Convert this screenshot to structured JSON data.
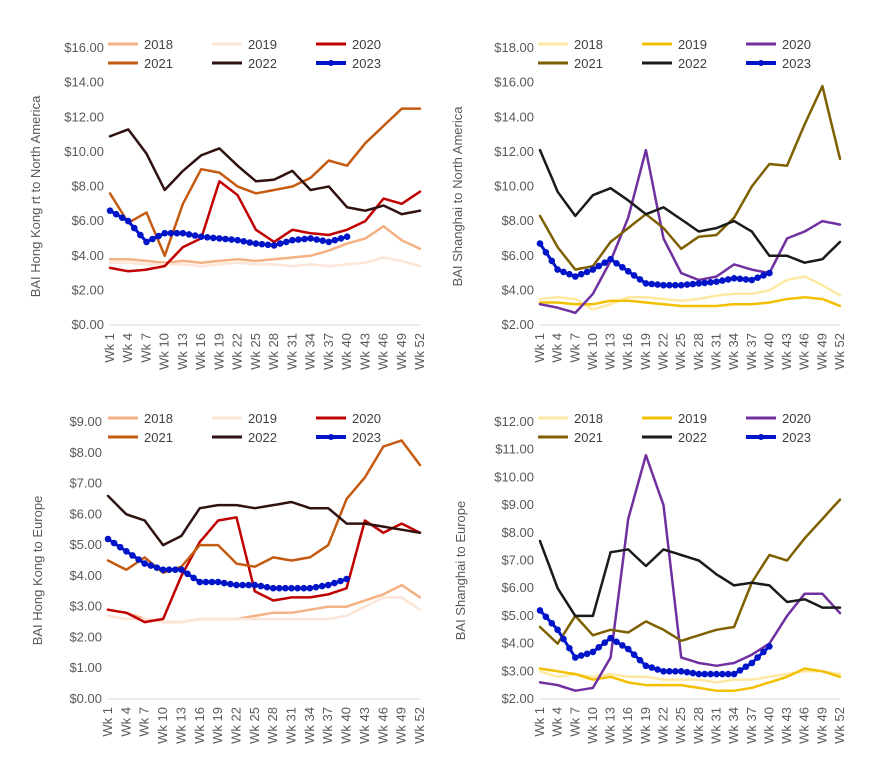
{
  "chart_data": [
    {
      "type": "line",
      "ylabel": "BAI Hong Kong rt to North America",
      "ylim": [
        0,
        16
      ],
      "ystep": 2,
      "yformat": "$",
      "grid": false,
      "legend": "top",
      "x": [
        "Wk 1",
        "Wk 4",
        "Wk 7",
        "Wk 10",
        "Wk 13",
        "Wk 16",
        "Wk 19",
        "Wk 22",
        "Wk 25",
        "Wk 28",
        "Wk 31",
        "Wk 34",
        "Wk 37",
        "Wk 40",
        "Wk 43",
        "Wk 46",
        "Wk 49",
        "Wk 52"
      ],
      "series": [
        {
          "name": "2018",
          "color": "#f4b183",
          "marker": false,
          "values": [
            3.8,
            3.8,
            3.7,
            3.6,
            3.7,
            3.6,
            3.7,
            3.8,
            3.7,
            3.8,
            3.9,
            4.0,
            4.3,
            4.7,
            5.0,
            5.7,
            4.9,
            4.4
          ]
        },
        {
          "name": "2019",
          "color": "#fbe5d6",
          "marker": false,
          "values": [
            3.6,
            3.6,
            3.5,
            3.5,
            3.5,
            3.4,
            3.5,
            3.6,
            3.5,
            3.5,
            3.4,
            3.5,
            3.4,
            3.5,
            3.6,
            3.9,
            3.7,
            3.4
          ]
        },
        {
          "name": "2020",
          "color": "#c00000",
          "marker": false,
          "values": [
            3.3,
            3.1,
            3.2,
            3.4,
            4.5,
            5.0,
            8.3,
            7.5,
            5.5,
            4.8,
            5.5,
            5.3,
            5.2,
            5.5,
            6.0,
            7.3,
            7.0,
            7.7
          ]
        },
        {
          "name": "2021",
          "color": "#c55a11",
          "marker": false,
          "values": [
            7.6,
            5.9,
            6.5,
            4.0,
            7.0,
            9.0,
            8.8,
            8.0,
            7.6,
            7.8,
            8.0,
            8.5,
            9.5,
            9.2,
            10.5,
            11.5,
            12.5,
            12.5
          ]
        },
        {
          "name": "2022",
          "color": "#2f1110",
          "marker": false,
          "values": [
            10.9,
            11.3,
            9.9,
            7.8,
            8.9,
            9.8,
            10.2,
            9.2,
            8.3,
            8.4,
            8.9,
            7.8,
            8.0,
            6.8,
            6.6,
            6.9,
            6.4,
            6.6
          ]
        },
        {
          "name": "2023",
          "color": "#0014c8",
          "marker": true,
          "values": [
            6.6,
            6.0,
            4.8,
            5.3,
            5.3,
            5.1,
            5.0,
            4.9,
            4.7,
            4.6,
            4.9,
            5.0,
            4.8,
            5.1,
            null,
            null,
            null,
            null
          ]
        }
      ]
    },
    {
      "type": "line",
      "ylabel": "BAI Shanghai to North America",
      "ylim": [
        2,
        18
      ],
      "ystep": 2,
      "yformat": "$",
      "grid": false,
      "legend": "top",
      "x": [
        "Wk 1",
        "Wk 4",
        "Wk 7",
        "Wk 10",
        "Wk 13",
        "Wk 16",
        "Wk 19",
        "Wk 22",
        "Wk 25",
        "Wk 28",
        "Wk 31",
        "Wk 34",
        "Wk 37",
        "Wk 40",
        "Wk 43",
        "Wk 46",
        "Wk 49",
        "Wk 52"
      ],
      "series": [
        {
          "name": "2018",
          "color": "#fde9a3",
          "marker": false,
          "values": [
            3.5,
            3.6,
            3.5,
            2.9,
            3.2,
            3.6,
            3.6,
            3.5,
            3.4,
            3.5,
            3.7,
            3.8,
            3.8,
            4.0,
            4.6,
            4.8,
            4.3,
            3.7
          ]
        },
        {
          "name": "2019",
          "color": "#f2c000",
          "marker": false,
          "values": [
            3.3,
            3.3,
            3.2,
            3.2,
            3.4,
            3.4,
            3.3,
            3.2,
            3.1,
            3.1,
            3.1,
            3.2,
            3.2,
            3.3,
            3.5,
            3.6,
            3.5,
            3.1
          ]
        },
        {
          "name": "2020",
          "color": "#7030a0",
          "marker": false,
          "values": [
            3.2,
            3.0,
            2.7,
            3.8,
            5.7,
            8.2,
            12.1,
            7.0,
            5.0,
            4.6,
            4.8,
            5.5,
            5.2,
            5.0,
            7.0,
            7.4,
            8.0,
            7.8
          ]
        },
        {
          "name": "2021",
          "color": "#7f6000",
          "marker": false,
          "values": [
            8.3,
            6.5,
            5.2,
            5.4,
            6.8,
            7.6,
            8.4,
            7.6,
            6.4,
            7.1,
            7.2,
            8.2,
            10.0,
            11.3,
            11.2,
            13.6,
            15.8,
            11.6
          ]
        },
        {
          "name": "2022",
          "color": "#1a1a1a",
          "marker": false,
          "values": [
            12.1,
            9.7,
            8.3,
            9.5,
            9.9,
            9.2,
            8.4,
            8.8,
            8.1,
            7.4,
            7.6,
            8.0,
            7.4,
            6.0,
            6.0,
            5.6,
            5.8,
            6.8
          ]
        },
        {
          "name": "2023",
          "color": "#0014c8",
          "marker": true,
          "values": [
            6.7,
            5.2,
            4.8,
            5.2,
            5.8,
            5.1,
            4.4,
            4.3,
            4.3,
            4.4,
            4.5,
            4.7,
            4.6,
            5.0,
            null,
            null,
            null,
            null
          ]
        }
      ]
    },
    {
      "type": "line",
      "ylabel": "BAI Hong Kong to Europe",
      "ylim": [
        0,
        9
      ],
      "ystep": 1,
      "yformat": "$",
      "grid": false,
      "legend": "top",
      "x": [
        "Wk 1",
        "Wk 4",
        "Wk 7",
        "Wk 10",
        "Wk 13",
        "Wk 16",
        "Wk 19",
        "Wk 22",
        "Wk 25",
        "Wk 28",
        "Wk 31",
        "Wk 34",
        "Wk 37",
        "Wk 40",
        "Wk 43",
        "Wk 46",
        "Wk 49",
        "Wk 52"
      ],
      "series": [
        {
          "name": "2018",
          "color": "#f4b183",
          "marker": false,
          "values": [
            2.9,
            2.8,
            2.6,
            2.5,
            2.5,
            2.6,
            2.6,
            2.6,
            2.7,
            2.8,
            2.8,
            2.9,
            3.0,
            3.0,
            3.2,
            3.4,
            3.7,
            3.3
          ]
        },
        {
          "name": "2019",
          "color": "#fbe5d6",
          "marker": false,
          "values": [
            2.7,
            2.6,
            2.6,
            2.5,
            2.5,
            2.6,
            2.6,
            2.6,
            2.6,
            2.6,
            2.6,
            2.6,
            2.6,
            2.7,
            3.0,
            3.3,
            3.3,
            2.9
          ]
        },
        {
          "name": "2020",
          "color": "#c00000",
          "marker": false,
          "values": [
            2.9,
            2.8,
            2.5,
            2.6,
            4.0,
            5.1,
            5.8,
            5.9,
            3.5,
            3.2,
            3.3,
            3.3,
            3.4,
            3.6,
            5.8,
            5.4,
            5.7,
            5.4
          ]
        },
        {
          "name": "2021",
          "color": "#c55a11",
          "marker": false,
          "values": [
            4.5,
            4.2,
            4.6,
            4.1,
            4.3,
            5.0,
            5.0,
            4.4,
            4.3,
            4.6,
            4.5,
            4.6,
            5.0,
            6.5,
            7.2,
            8.2,
            8.4,
            7.6
          ]
        },
        {
          "name": "2022",
          "color": "#2f1110",
          "marker": false,
          "values": [
            6.6,
            6.0,
            5.8,
            5.0,
            5.3,
            6.2,
            6.3,
            6.3,
            6.2,
            6.3,
            6.4,
            6.2,
            6.2,
            5.7,
            5.7,
            5.6,
            5.5,
            5.4
          ]
        },
        {
          "name": "2023",
          "color": "#0014c8",
          "marker": true,
          "values": [
            5.2,
            4.8,
            4.4,
            4.2,
            4.2,
            3.8,
            3.8,
            3.7,
            3.7,
            3.6,
            3.6,
            3.6,
            3.7,
            3.9,
            null,
            null,
            null,
            null
          ]
        }
      ]
    },
    {
      "type": "line",
      "ylabel": "BAI Shanghai to Europe",
      "ylim": [
        2,
        12
      ],
      "ystep": 1,
      "yformat": "$",
      "grid": false,
      "legend": "top",
      "x": [
        "Wk 1",
        "Wk 4",
        "Wk 7",
        "Wk 10",
        "Wk 13",
        "Wk 16",
        "Wk 19",
        "Wk 22",
        "Wk 25",
        "Wk 28",
        "Wk 31",
        "Wk 34",
        "Wk 37",
        "Wk 40",
        "Wk 43",
        "Wk 46",
        "Wk 49",
        "Wk 52"
      ],
      "series": [
        {
          "name": "2018",
          "color": "#fde9a3",
          "marker": false,
          "values": [
            3.0,
            2.8,
            2.9,
            2.8,
            2.9,
            2.8,
            2.8,
            2.7,
            2.7,
            2.7,
            2.6,
            2.7,
            2.7,
            2.8,
            2.9,
            3.0,
            3.0,
            2.9
          ]
        },
        {
          "name": "2019",
          "color": "#f2c000",
          "marker": false,
          "values": [
            3.1,
            3.0,
            2.9,
            2.7,
            2.8,
            2.6,
            2.5,
            2.5,
            2.5,
            2.4,
            2.3,
            2.3,
            2.4,
            2.6,
            2.8,
            3.1,
            3.0,
            2.8
          ]
        },
        {
          "name": "2020",
          "color": "#7030a0",
          "marker": false,
          "values": [
            2.6,
            2.5,
            2.3,
            2.4,
            3.5,
            8.5,
            10.8,
            9.0,
            3.5,
            3.3,
            3.2,
            3.3,
            3.6,
            4.0,
            5.0,
            5.8,
            5.8,
            5.1
          ]
        },
        {
          "name": "2021",
          "color": "#7f6000",
          "marker": false,
          "values": [
            4.6,
            4.0,
            5.0,
            4.3,
            4.5,
            4.4,
            4.8,
            4.5,
            4.1,
            4.3,
            4.5,
            4.6,
            6.2,
            7.2,
            7.0,
            7.8,
            8.5,
            9.2
          ]
        },
        {
          "name": "2022",
          "color": "#1a1a1a",
          "marker": false,
          "values": [
            7.7,
            6.0,
            5.0,
            5.0,
            7.3,
            7.4,
            6.8,
            7.4,
            7.2,
            7.0,
            6.5,
            6.1,
            6.2,
            6.1,
            5.5,
            5.6,
            5.3,
            5.3
          ]
        },
        {
          "name": "2023",
          "color": "#0014c8",
          "marker": true,
          "values": [
            5.2,
            4.5,
            3.5,
            3.7,
            4.2,
            3.8,
            3.2,
            3.0,
            3.0,
            2.9,
            2.9,
            2.9,
            3.3,
            3.9,
            null,
            null,
            null,
            null
          ]
        }
      ]
    }
  ]
}
